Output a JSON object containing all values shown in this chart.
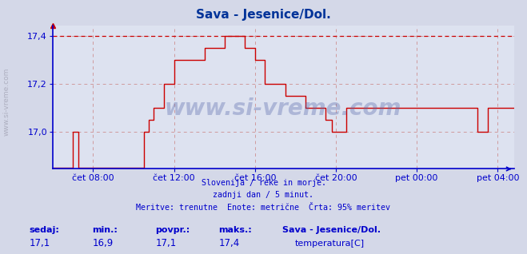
{
  "title": "Sava - Jesenice/Dol.",
  "title_color": "#003399",
  "bg_color": "#d4d8e8",
  "plot_bg_color": "#dde2f0",
  "line_color": "#cc0000",
  "grid_color": "#cc8888",
  "axis_color": "#0000cc",
  "ylabel_text": "www.si-vreme.com",
  "subtitle_lines": [
    "Slovenija / reke in morje.",
    "zadnji dan / 5 minut.",
    "Meritve: trenutne  Enote: metrične  Črta: 95% meritev"
  ],
  "bottom_labels": {
    "sedaj": "17,1",
    "min": "16,9",
    "povpr": "17,1",
    "maks": "17,4",
    "station": "Sava - Jesenice/Dol.",
    "param": "temperatura[C]"
  },
  "ylim_min": 16.845,
  "ylim_max": 17.445,
  "yticks": [
    17.0,
    17.2,
    17.4
  ],
  "ytick_labels": [
    "17,0",
    "17,2",
    "17,4"
  ],
  "max_line": 17.4,
  "xlim_min": 6.0,
  "xlim_max": 28.8,
  "xtick_hours": [
    8,
    12,
    16,
    20,
    24,
    28
  ],
  "xtick_labels": [
    "čet 08:00",
    "čet 12:00",
    "čet 16:00",
    "čet 20:00",
    "pet 00:00",
    "pet 04:00"
  ],
  "watermark": "www.si-vreme.com"
}
